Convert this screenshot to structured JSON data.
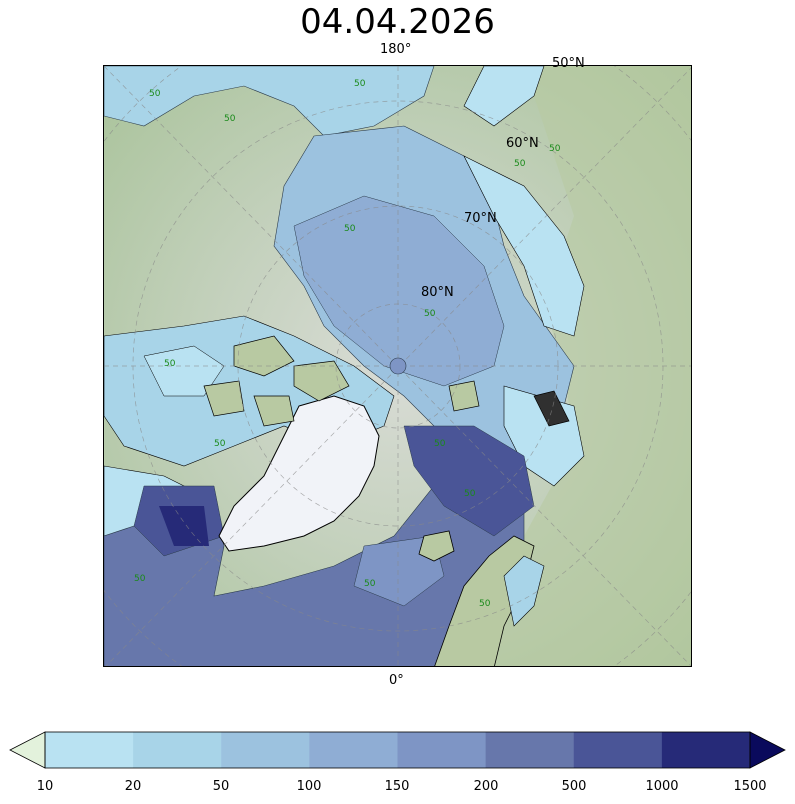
{
  "title": "04.04.2026",
  "map": {
    "lon_labels": {
      "top": "180°",
      "bottom": "0°"
    },
    "lat_labels": [
      "50°N",
      "60°N",
      "70°N",
      "80°N"
    ],
    "contour_label_value": "50",
    "contour_label_color": "#1a8a1a",
    "land_color": "#a9c79a",
    "greenland_ice_color": "#f1f3f8",
    "coastline_color": "#000000"
  },
  "colorbar": {
    "ticks": [
      "10",
      "20",
      "50",
      "100",
      "150",
      "200",
      "500",
      "1000",
      "1500"
    ],
    "colors": [
      "#b9e2f2",
      "#a8d4e8",
      "#9cc2df",
      "#8fadd4",
      "#7e95c5",
      "#6777ab",
      "#4a5597",
      "#262a78"
    ],
    "under_color": "#e3f2dc",
    "over_color": "#0a0a5c"
  }
}
